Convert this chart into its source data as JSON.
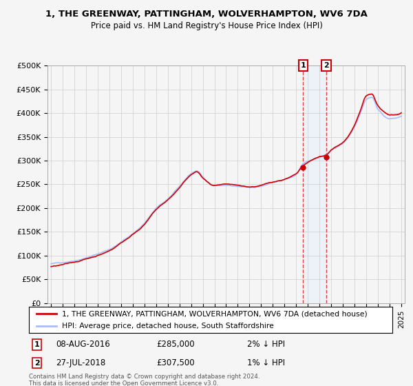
{
  "title": "1, THE GREENWAY, PATTINGHAM, WOLVERHAMPTON, WV6 7DA",
  "subtitle": "Price paid vs. HM Land Registry's House Price Index (HPI)",
  "legend_line1": "1, THE GREENWAY, PATTINGHAM, WOLVERHAMPTON, WV6 7DA (detached house)",
  "legend_line2": "HPI: Average price, detached house, South Staffordshire",
  "footer1": "Contains HM Land Registry data © Crown copyright and database right 2024.",
  "footer2": "This data is licensed under the Open Government Licence v3.0.",
  "sale1_date": "08-AUG-2016",
  "sale1_price": "£285,000",
  "sale1_hpi": "2% ↓ HPI",
  "sale1_year": 2016.6,
  "sale1_value": 285000,
  "sale2_date": "27-JUL-2018",
  "sale2_price": "£307,500",
  "sale2_hpi": "1% ↓ HPI",
  "sale2_year": 2018.58,
  "sale2_value": 307500,
  "hpi_color": "#aabbff",
  "property_color": "#cc0000",
  "vline1_color": "#dd4444",
  "vline2_color": "#dd4444",
  "shade_color": "#ddeeff",
  "background_color": "#f5f5f5",
  "plot_bg_color": "#f5f5f5",
  "grid_color": "#cccccc",
  "ylim": [
    0,
    500000
  ],
  "xlim": [
    1994.7,
    2025.3
  ],
  "yticks": [
    0,
    50000,
    100000,
    150000,
    200000,
    250000,
    300000,
    350000,
    400000,
    450000,
    500000
  ],
  "ytick_labels": [
    "£0",
    "£50K",
    "£100K",
    "£150K",
    "£200K",
    "£250K",
    "£300K",
    "£350K",
    "£400K",
    "£450K",
    "£500K"
  ],
  "xticks": [
    1995,
    1996,
    1997,
    1998,
    1999,
    2000,
    2001,
    2002,
    2003,
    2004,
    2005,
    2006,
    2007,
    2008,
    2009,
    2010,
    2011,
    2012,
    2013,
    2014,
    2015,
    2016,
    2017,
    2018,
    2019,
    2020,
    2021,
    2022,
    2023,
    2024,
    2025
  ],
  "hpi_keypoints_x": [
    1995.0,
    1996.0,
    1997.0,
    1998.0,
    1999.0,
    2000.0,
    2001.0,
    2002.0,
    2003.0,
    2004.0,
    2005.0,
    2006.0,
    2007.0,
    2007.5,
    2008.0,
    2009.0,
    2010.0,
    2011.0,
    2012.0,
    2013.0,
    2014.0,
    2015.0,
    2016.0,
    2016.6,
    2017.0,
    2018.0,
    2018.58,
    2019.0,
    2020.0,
    2021.0,
    2021.5,
    2022.0,
    2022.5,
    2023.0,
    2024.0,
    2025.0
  ],
  "hpi_keypoints_y": [
    82000,
    85000,
    90000,
    97000,
    105000,
    115000,
    130000,
    148000,
    170000,
    200000,
    220000,
    245000,
    272000,
    278000,
    265000,
    248000,
    248000,
    244000,
    242000,
    245000,
    252000,
    258000,
    268000,
    290000,
    295000,
    305000,
    312000,
    320000,
    335000,
    370000,
    400000,
    430000,
    435000,
    410000,
    390000,
    395000
  ],
  "prop_offset_x": [
    1995.0,
    1996.0,
    1997.0,
    1998.0,
    1999.0,
    2000.0,
    2001.0,
    2002.0,
    2003.0,
    2004.0,
    2005.0,
    2006.0,
    2007.0,
    2007.5,
    2008.0,
    2009.0,
    2010.0,
    2011.0,
    2012.0,
    2013.0,
    2014.0,
    2015.0,
    2016.0,
    2016.6,
    2017.0,
    2018.0,
    2018.58,
    2019.0,
    2020.0,
    2021.0,
    2021.5,
    2022.0,
    2022.5,
    2023.0,
    2024.0,
    2025.0
  ],
  "prop_offset_y": [
    82000,
    85000,
    90000,
    97000,
    105000,
    115000,
    132000,
    150000,
    172000,
    202000,
    222000,
    247000,
    274000,
    280000,
    267000,
    250000,
    250000,
    246000,
    243000,
    246000,
    253000,
    259000,
    269000,
    285000,
    292000,
    303000,
    307500,
    318000,
    333000,
    368000,
    398000,
    428000,
    432000,
    408000,
    388000,
    393000
  ]
}
